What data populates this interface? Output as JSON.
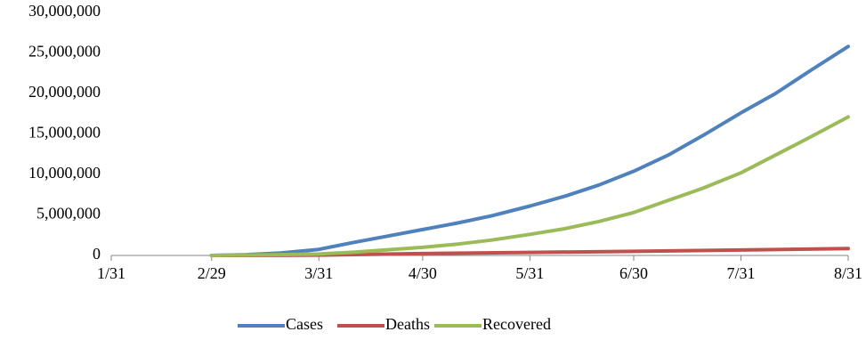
{
  "chart_data": {
    "type": "line",
    "x_tick_labels": [
      "1/31",
      "2/29",
      "3/31",
      "4/30",
      "5/31",
      "6/30",
      "7/31",
      "8/31"
    ],
    "x_tick_dates": [
      "2020-01-31",
      "2020-02-29",
      "2020-03-31",
      "2020-04-30",
      "2020-05-31",
      "2020-06-30",
      "2020-07-31",
      "2020-08-31"
    ],
    "ylim": [
      0,
      30000000
    ],
    "y_tick_values": [
      0,
      5000000,
      10000000,
      15000000,
      20000000,
      25000000,
      30000000
    ],
    "y_tick_labels": [
      "0",
      "5,000,000",
      "10,000,000",
      "15,000,000",
      "20,000,000",
      "25,000,000",
      "30,000,000"
    ],
    "grid": false,
    "legend_position": "bottom",
    "series": [
      {
        "name": "Cases",
        "color": "#4f81bd",
        "points": [
          [
            "2020-02-29",
            0
          ],
          [
            "2020-03-10",
            100000
          ],
          [
            "2020-03-20",
            300000
          ],
          [
            "2020-03-31",
            750000
          ],
          [
            "2020-04-10",
            1600000
          ],
          [
            "2020-04-20",
            2400000
          ],
          [
            "2020-04-30",
            3200000
          ],
          [
            "2020-05-10",
            4000000
          ],
          [
            "2020-05-20",
            4900000
          ],
          [
            "2020-05-31",
            6100000
          ],
          [
            "2020-06-10",
            7300000
          ],
          [
            "2020-06-20",
            8700000
          ],
          [
            "2020-06-30",
            10400000
          ],
          [
            "2020-07-10",
            12400000
          ],
          [
            "2020-07-20",
            14800000
          ],
          [
            "2020-07-31",
            17600000
          ],
          [
            "2020-08-10",
            20000000
          ],
          [
            "2020-08-20",
            22800000
          ],
          [
            "2020-08-31",
            25800000
          ]
        ]
      },
      {
        "name": "Deaths",
        "color": "#c0504d",
        "points": [
          [
            "2020-02-29",
            0
          ],
          [
            "2020-03-20",
            10000
          ],
          [
            "2020-03-31",
            40000
          ],
          [
            "2020-04-15",
            140000
          ],
          [
            "2020-04-30",
            230000
          ],
          [
            "2020-05-31",
            370000
          ],
          [
            "2020-06-30",
            510000
          ],
          [
            "2020-07-31",
            670000
          ],
          [
            "2020-08-31",
            850000
          ]
        ]
      },
      {
        "name": "Recovered",
        "color": "#9bbb59",
        "points": [
          [
            "2020-02-29",
            0
          ],
          [
            "2020-03-10",
            50000
          ],
          [
            "2020-03-20",
            100000
          ],
          [
            "2020-03-31",
            180000
          ],
          [
            "2020-04-10",
            400000
          ],
          [
            "2020-04-20",
            700000
          ],
          [
            "2020-04-30",
            1000000
          ],
          [
            "2020-05-10",
            1400000
          ],
          [
            "2020-05-20",
            1900000
          ],
          [
            "2020-05-31",
            2600000
          ],
          [
            "2020-06-10",
            3300000
          ],
          [
            "2020-06-20",
            4200000
          ],
          [
            "2020-06-30",
            5300000
          ],
          [
            "2020-07-10",
            6800000
          ],
          [
            "2020-07-20",
            8300000
          ],
          [
            "2020-07-31",
            10200000
          ],
          [
            "2020-08-10",
            12400000
          ],
          [
            "2020-08-20",
            14600000
          ],
          [
            "2020-08-31",
            17100000
          ]
        ]
      }
    ]
  }
}
